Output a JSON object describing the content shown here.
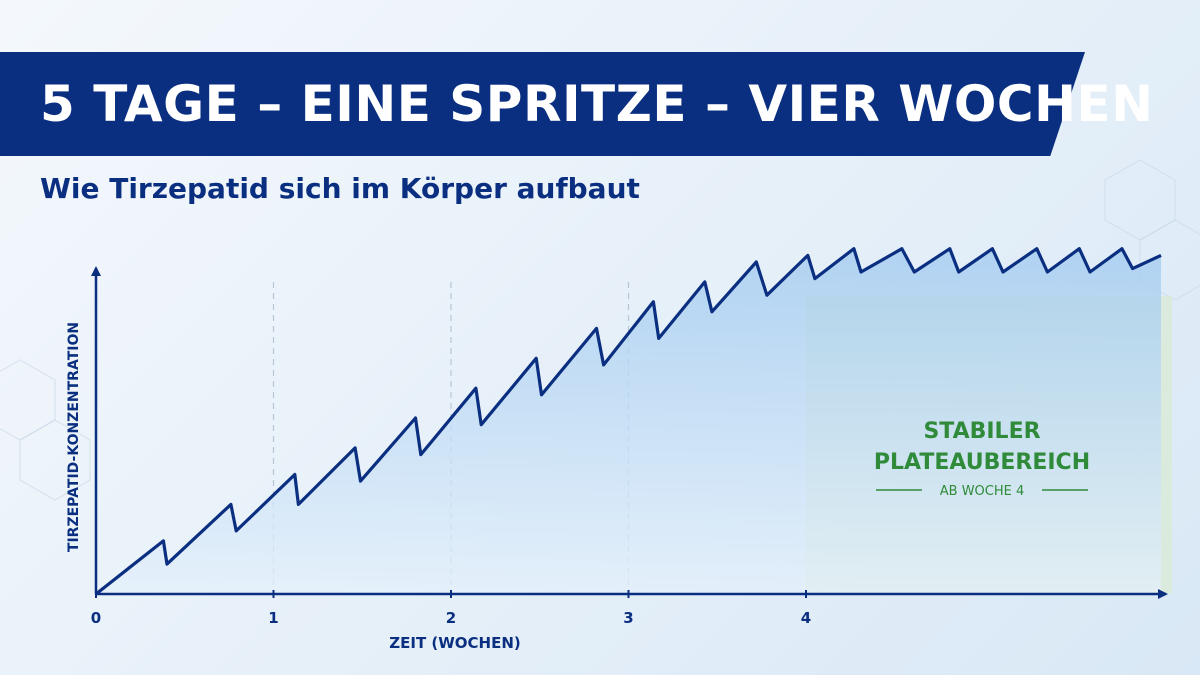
{
  "header": {
    "title": "5 TAGE – EINE SPRITZE – VIER WOCHEN",
    "subtitle": "Wie Tirzepatid sich im Körper aufbaut"
  },
  "chart_data": {
    "type": "line",
    "xlabel": "ZEIT (WOCHEN)",
    "ylabel": "TIRZEPATID-KONZENTRATION",
    "xticks": [
      0,
      1,
      2,
      3,
      4
    ],
    "xlim": [
      0,
      6
    ],
    "ylim": [
      0,
      100
    ],
    "y_ticks_shown": false,
    "grid": "vertical-dashed",
    "series": [
      {
        "dose_interval_days": 5,
        "x": [
          0,
          0.38,
          0.4,
          0.76,
          0.79,
          1.12,
          1.14,
          1.46,
          1.49,
          1.8,
          1.83,
          2.14,
          2.17,
          2.48,
          2.51,
          2.82,
          2.86,
          3.14,
          3.17,
          3.43,
          3.47,
          3.72,
          3.78,
          4.01,
          4.05,
          4.27,
          4.31,
          4.54,
          4.61,
          4.81,
          4.86,
          5.05,
          5.11,
          5.3,
          5.36,
          5.54,
          5.6,
          5.78,
          5.84,
          6.0
        ],
        "y": [
          0,
          16,
          9,
          27,
          19,
          36,
          27,
          44,
          34,
          53,
          42,
          62,
          51,
          71,
          60,
          80,
          69,
          88,
          77,
          94,
          85,
          100,
          90,
          102,
          95,
          104,
          97,
          104,
          97,
          104,
          97,
          104,
          97,
          104,
          97,
          104,
          97,
          104,
          98,
          102
        ]
      }
    ],
    "plateau": {
      "x_start": 4,
      "label_lines": [
        "STABILER",
        "PLATEAUBEREICH"
      ],
      "sublabel": "AB WOCHE 4",
      "fill": "#d9ead8",
      "text_color": "#2f8a3a"
    },
    "colors": {
      "line": "#0b2f80",
      "area_top": "#9fc9ef",
      "area_bottom": "#e4f0fb",
      "axis": "#0b2f80"
    }
  }
}
